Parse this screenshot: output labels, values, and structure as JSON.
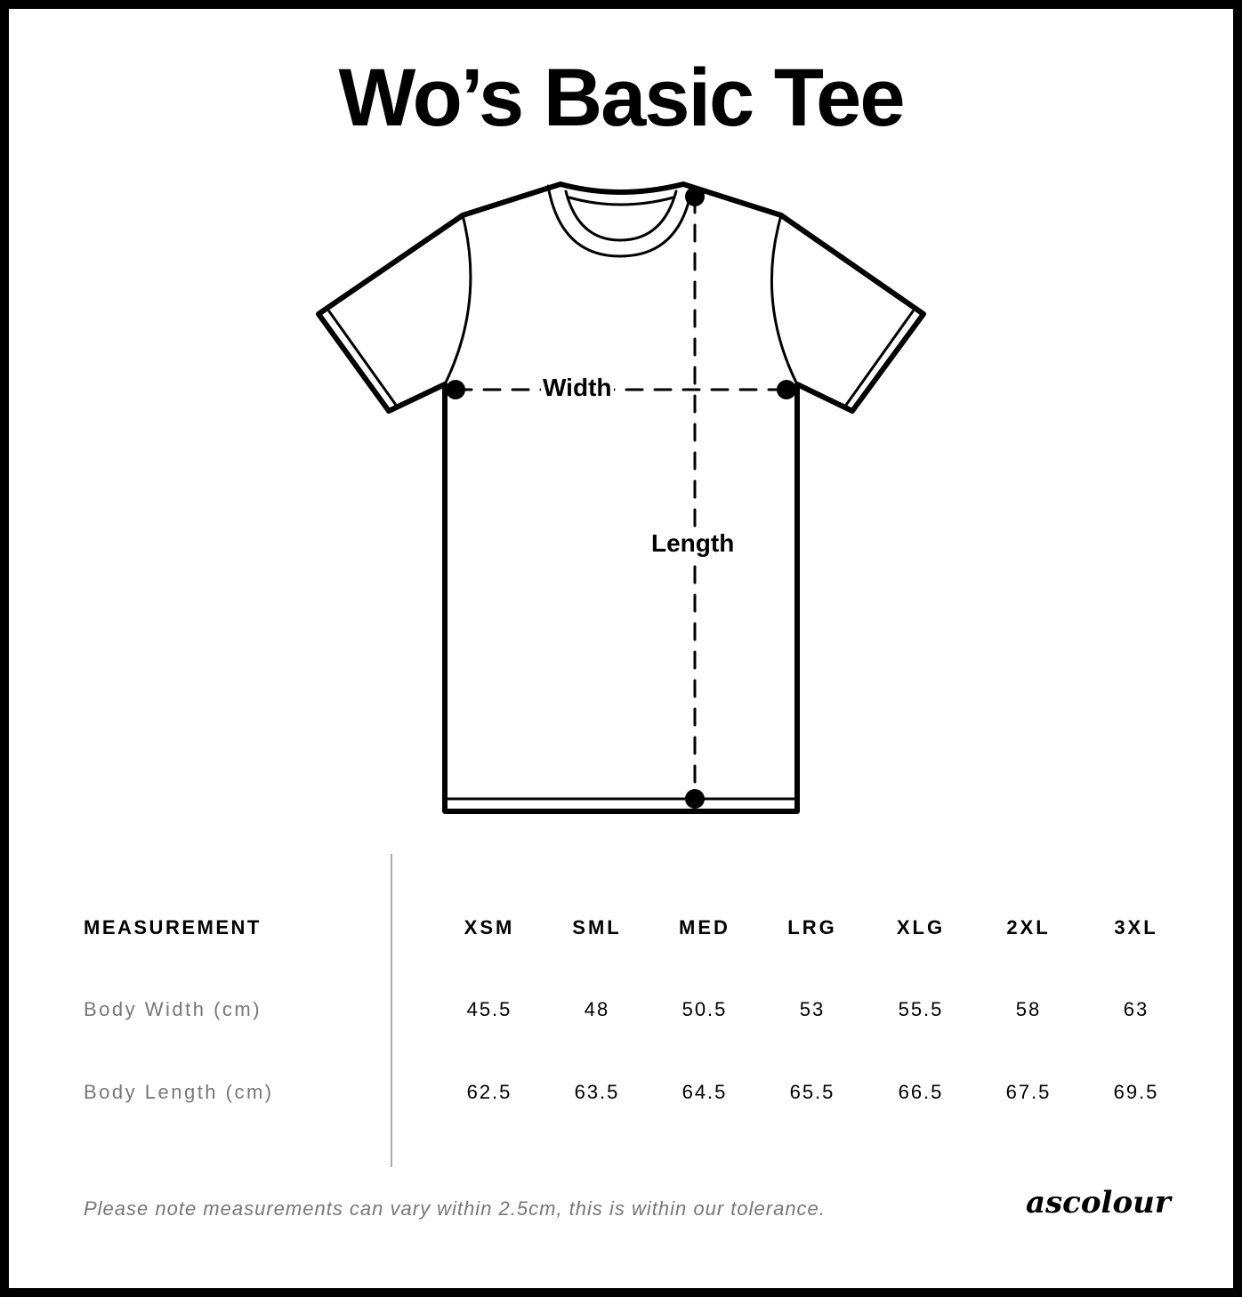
{
  "title": "Wo’s Basic Tee",
  "diagram": {
    "width_label": "Width",
    "length_label": "Length"
  },
  "table": {
    "header": "MEASUREMENT",
    "sizes": [
      "XSM",
      "SML",
      "MED",
      "LRG",
      "XLG",
      "2XL",
      "3XL"
    ],
    "rows": [
      {
        "label": "Body Width (cm)",
        "values": [
          "45.5",
          "48",
          "50.5",
          "53",
          "55.5",
          "58",
          "63"
        ]
      },
      {
        "label": "Body Length (cm)",
        "values": [
          "62.5",
          "63.5",
          "64.5",
          "65.5",
          "66.5",
          "67.5",
          "69.5"
        ]
      }
    ]
  },
  "note": "Please note measurements can vary within 2.5cm, this is within our tolerance.",
  "logo": "ascolour"
}
